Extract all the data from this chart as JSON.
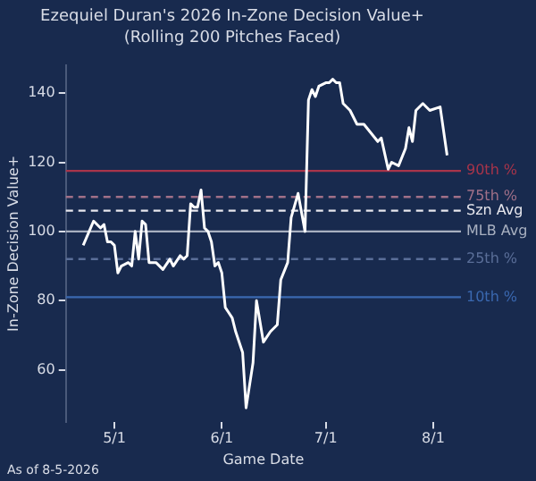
{
  "chart_data": {
    "type": "line",
    "title": "Ezequiel Duran's 2026 In-Zone Decision Value+",
    "subtitle": "(Rolling 200 Pitches Faced)",
    "xlabel": "Game Date",
    "ylabel": "In-Zone Decision Value+",
    "x": [
      "2026-04-22",
      "2026-04-25",
      "2026-04-27",
      "2026-04-28",
      "2026-04-29",
      "2026-04-30",
      "2026-05-01",
      "2026-05-02",
      "2026-05-03",
      "2026-05-05",
      "2026-05-06",
      "2026-05-07",
      "2026-05-08",
      "2026-05-09",
      "2026-05-10",
      "2026-05-11",
      "2026-05-13",
      "2026-05-15",
      "2026-05-17",
      "2026-05-18",
      "2026-05-20",
      "2026-05-21",
      "2026-05-22",
      "2026-05-23",
      "2026-05-24",
      "2026-05-25",
      "2026-05-26",
      "2026-05-27",
      "2026-05-28",
      "2026-05-29",
      "2026-05-30",
      "2026-05-31",
      "2026-06-01",
      "2026-06-02",
      "2026-06-04",
      "2026-06-05",
      "2026-06-07",
      "2026-06-08",
      "2026-06-10",
      "2026-06-11",
      "2026-06-13",
      "2026-06-15",
      "2026-06-17",
      "2026-06-18",
      "2026-06-20",
      "2026-06-21",
      "2026-06-23",
      "2026-06-25",
      "2026-06-26",
      "2026-06-27",
      "2026-06-28",
      "2026-06-29",
      "2026-07-01",
      "2026-07-02",
      "2026-07-03",
      "2026-07-04",
      "2026-07-05",
      "2026-07-06",
      "2026-07-08",
      "2026-07-10",
      "2026-07-12",
      "2026-07-16",
      "2026-07-17",
      "2026-07-19",
      "2026-07-20",
      "2026-07-22",
      "2026-07-24",
      "2026-07-25",
      "2026-07-26",
      "2026-07-27",
      "2026-07-29",
      "2026-07-31",
      "2026-08-03",
      "2026-08-05"
    ],
    "series": [
      {
        "color": "#ffffff",
        "values": [
          96,
          103,
          101,
          102,
          97,
          97,
          96,
          88,
          90,
          91,
          90,
          100,
          92,
          103,
          102,
          91,
          91,
          89,
          92,
          90,
          93,
          92,
          93,
          108,
          107,
          107,
          112,
          101,
          100,
          97,
          90,
          91,
          88,
          78,
          75,
          71,
          65,
          49,
          62,
          80,
          68,
          71,
          73,
          86,
          91,
          104,
          111,
          100,
          138,
          141,
          139,
          142,
          143,
          143,
          144,
          143,
          143,
          137,
          135,
          131,
          131,
          126,
          127,
          118,
          120,
          119,
          124,
          130,
          126,
          135,
          137,
          135,
          136,
          122
        ]
      }
    ],
    "xlim": [
      "2026-04-17",
      "2026-08-09"
    ],
    "xticks": [
      {
        "value": "2026-05-01",
        "label": "5/1"
      },
      {
        "value": "2026-06-01",
        "label": "6/1"
      },
      {
        "value": "2026-07-01",
        "label": "7/1"
      },
      {
        "value": "2026-08-01",
        "label": "8/1"
      }
    ],
    "ylim": [
      45,
      148
    ],
    "yticks": [
      60,
      80,
      100,
      120,
      140
    ],
    "grid": false,
    "legend": false,
    "ref_lines": [
      {
        "axis": "y",
        "value": 117.5,
        "label": "90th %",
        "color": "#a8344a",
        "line_style": "solid"
      },
      {
        "axis": "y",
        "value": 110,
        "label": "75th %",
        "color": "#a07088",
        "line_style": "dashed"
      },
      {
        "axis": "y",
        "value": 106,
        "label": "Szn Avg",
        "color": "#e8e8ee",
        "line_style": "dashed"
      },
      {
        "axis": "y",
        "value": 100,
        "label": "MLB Avg",
        "color": "#a8b0c0",
        "line_style": "solid"
      },
      {
        "axis": "y",
        "value": 92,
        "label": "25th %",
        "color": "#5a6e98",
        "line_style": "dashed"
      },
      {
        "axis": "y",
        "value": 81,
        "label": "10th %",
        "color": "#3a68b0",
        "line_style": "solid"
      }
    ],
    "annotations": [
      "As of 8-5-2026"
    ]
  }
}
